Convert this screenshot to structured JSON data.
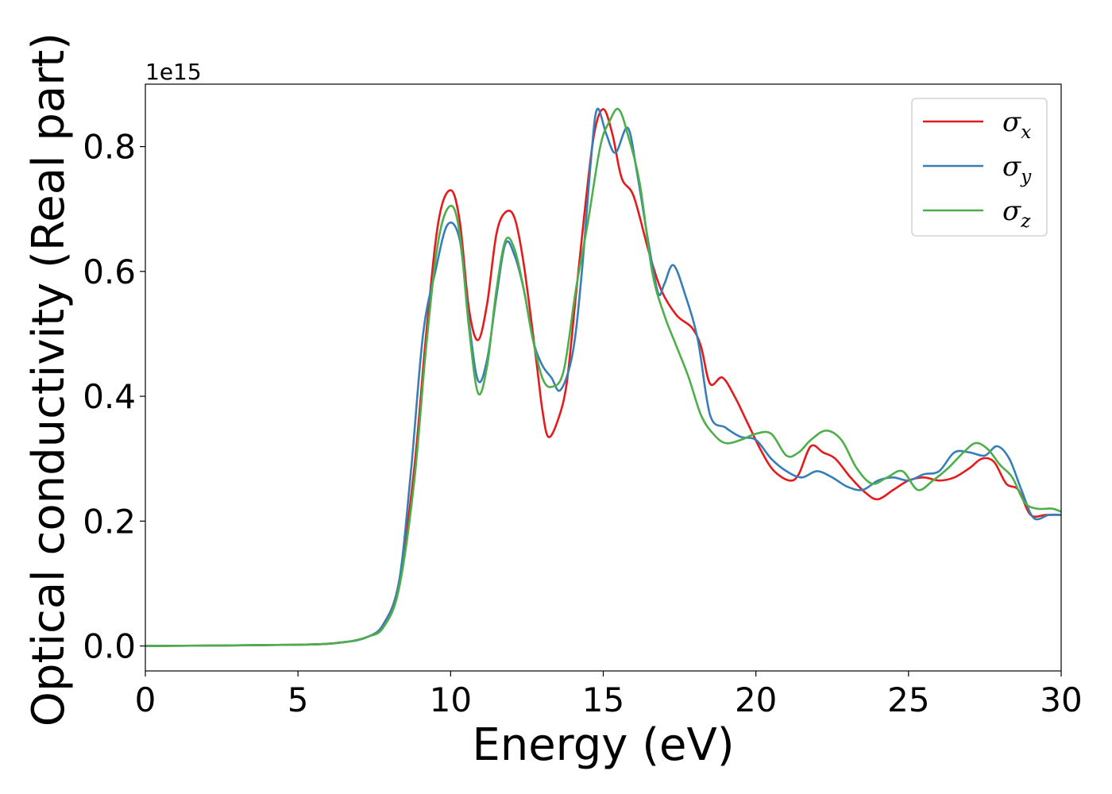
{
  "chart_data": {
    "type": "line",
    "xlabel": "Energy (eV)",
    "ylabel": "Optical conductivity (Real part)",
    "y_offset_label": "1e15",
    "xlim": [
      0,
      30
    ],
    "ylim": [
      -0.04,
      0.9
    ],
    "x_ticks": [
      0,
      5,
      10,
      15,
      20,
      25,
      30
    ],
    "x_tick_labels": [
      "0",
      "5",
      "10",
      "15",
      "20",
      "25",
      "30"
    ],
    "y_ticks": [
      0.0,
      0.2,
      0.4,
      0.6,
      0.8
    ],
    "y_tick_labels": [
      "0.0",
      "0.2",
      "0.4",
      "0.6",
      "0.8"
    ],
    "grid": false,
    "legend_position": "top-right",
    "series": [
      {
        "name": "σx",
        "symbol": "σ",
        "subscript": "x",
        "color": "#e41a1c",
        "points": [
          [
            0,
            0.0
          ],
          [
            5,
            0.002
          ],
          [
            6.5,
            0.006
          ],
          [
            7.3,
            0.015
          ],
          [
            7.8,
            0.035
          ],
          [
            8.3,
            0.1
          ],
          [
            8.8,
            0.28
          ],
          [
            9.2,
            0.5
          ],
          [
            9.6,
            0.68
          ],
          [
            10.0,
            0.73
          ],
          [
            10.3,
            0.68
          ],
          [
            10.6,
            0.54
          ],
          [
            10.9,
            0.49
          ],
          [
            11.2,
            0.55
          ],
          [
            11.5,
            0.66
          ],
          [
            11.8,
            0.695
          ],
          [
            12.1,
            0.685
          ],
          [
            12.4,
            0.61
          ],
          [
            12.8,
            0.46
          ],
          [
            13.0,
            0.38
          ],
          [
            13.2,
            0.335
          ],
          [
            13.5,
            0.36
          ],
          [
            13.8,
            0.42
          ],
          [
            14.1,
            0.56
          ],
          [
            14.4,
            0.7
          ],
          [
            14.7,
            0.82
          ],
          [
            15.0,
            0.86
          ],
          [
            15.3,
            0.82
          ],
          [
            15.6,
            0.75
          ],
          [
            16.0,
            0.72
          ],
          [
            16.5,
            0.63
          ],
          [
            16.9,
            0.57
          ],
          [
            17.4,
            0.53
          ],
          [
            17.9,
            0.51
          ],
          [
            18.2,
            0.48
          ],
          [
            18.5,
            0.42
          ],
          [
            18.9,
            0.43
          ],
          [
            19.3,
            0.4
          ],
          [
            19.7,
            0.36
          ],
          [
            20.2,
            0.31
          ],
          [
            20.6,
            0.28
          ],
          [
            21.1,
            0.265
          ],
          [
            21.4,
            0.275
          ],
          [
            21.8,
            0.32
          ],
          [
            22.2,
            0.31
          ],
          [
            22.6,
            0.3
          ],
          [
            23.1,
            0.27
          ],
          [
            23.6,
            0.245
          ],
          [
            24.0,
            0.235
          ],
          [
            24.5,
            0.25
          ],
          [
            25.0,
            0.265
          ],
          [
            25.5,
            0.27
          ],
          [
            26.0,
            0.265
          ],
          [
            26.5,
            0.27
          ],
          [
            27.0,
            0.285
          ],
          [
            27.4,
            0.3
          ],
          [
            27.8,
            0.295
          ],
          [
            28.2,
            0.26
          ],
          [
            28.6,
            0.25
          ],
          [
            29.0,
            0.21
          ],
          [
            29.5,
            0.21
          ],
          [
            30.0,
            0.21
          ]
        ]
      },
      {
        "name": "σy",
        "symbol": "σ",
        "subscript": "y",
        "color": "#377eb8",
        "points": [
          [
            0,
            0.0
          ],
          [
            5,
            0.002
          ],
          [
            6.5,
            0.006
          ],
          [
            7.3,
            0.015
          ],
          [
            7.8,
            0.035
          ],
          [
            8.3,
            0.1
          ],
          [
            8.7,
            0.28
          ],
          [
            9.1,
            0.5
          ],
          [
            9.5,
            0.6
          ],
          [
            9.9,
            0.675
          ],
          [
            10.3,
            0.65
          ],
          [
            10.6,
            0.52
          ],
          [
            10.9,
            0.425
          ],
          [
            11.2,
            0.46
          ],
          [
            11.5,
            0.56
          ],
          [
            11.8,
            0.645
          ],
          [
            12.1,
            0.625
          ],
          [
            12.4,
            0.57
          ],
          [
            12.7,
            0.49
          ],
          [
            13.0,
            0.45
          ],
          [
            13.3,
            0.43
          ],
          [
            13.6,
            0.41
          ],
          [
            14.0,
            0.47
          ],
          [
            14.3,
            0.6
          ],
          [
            14.6,
            0.78
          ],
          [
            14.8,
            0.86
          ],
          [
            15.1,
            0.82
          ],
          [
            15.4,
            0.79
          ],
          [
            15.8,
            0.83
          ],
          [
            16.1,
            0.76
          ],
          [
            16.5,
            0.64
          ],
          [
            16.8,
            0.565
          ],
          [
            17.0,
            0.58
          ],
          [
            17.3,
            0.61
          ],
          [
            17.7,
            0.56
          ],
          [
            18.1,
            0.49
          ],
          [
            18.5,
            0.37
          ],
          [
            19.0,
            0.35
          ],
          [
            19.5,
            0.335
          ],
          [
            20.0,
            0.33
          ],
          [
            20.5,
            0.3
          ],
          [
            21.0,
            0.28
          ],
          [
            21.5,
            0.27
          ],
          [
            22.0,
            0.28
          ],
          [
            22.5,
            0.27
          ],
          [
            23.0,
            0.255
          ],
          [
            23.5,
            0.25
          ],
          [
            24.0,
            0.265
          ],
          [
            24.5,
            0.27
          ],
          [
            25.0,
            0.265
          ],
          [
            25.5,
            0.275
          ],
          [
            26.0,
            0.28
          ],
          [
            26.5,
            0.31
          ],
          [
            27.0,
            0.31
          ],
          [
            27.5,
            0.305
          ],
          [
            27.9,
            0.32
          ],
          [
            28.3,
            0.3
          ],
          [
            28.7,
            0.25
          ],
          [
            29.1,
            0.205
          ],
          [
            29.6,
            0.21
          ],
          [
            30.0,
            0.21
          ]
        ]
      },
      {
        "name": "σz",
        "symbol": "σ",
        "subscript": "z",
        "color": "#4daf4a",
        "points": [
          [
            0,
            0.0
          ],
          [
            5,
            0.002
          ],
          [
            6.5,
            0.006
          ],
          [
            7.3,
            0.015
          ],
          [
            7.8,
            0.03
          ],
          [
            8.3,
            0.09
          ],
          [
            8.8,
            0.26
          ],
          [
            9.2,
            0.48
          ],
          [
            9.6,
            0.65
          ],
          [
            10.0,
            0.705
          ],
          [
            10.3,
            0.66
          ],
          [
            10.6,
            0.51
          ],
          [
            10.9,
            0.405
          ],
          [
            11.2,
            0.45
          ],
          [
            11.5,
            0.57
          ],
          [
            11.8,
            0.65
          ],
          [
            12.1,
            0.635
          ],
          [
            12.4,
            0.57
          ],
          [
            12.7,
            0.49
          ],
          [
            13.0,
            0.43
          ],
          [
            13.3,
            0.415
          ],
          [
            13.7,
            0.44
          ],
          [
            14.1,
            0.57
          ],
          [
            14.5,
            0.68
          ],
          [
            14.9,
            0.8
          ],
          [
            15.2,
            0.84
          ],
          [
            15.5,
            0.86
          ],
          [
            15.8,
            0.82
          ],
          [
            16.2,
            0.74
          ],
          [
            16.6,
            0.6
          ],
          [
            17.0,
            0.53
          ],
          [
            17.4,
            0.48
          ],
          [
            17.8,
            0.43
          ],
          [
            18.2,
            0.37
          ],
          [
            18.6,
            0.34
          ],
          [
            19.0,
            0.325
          ],
          [
            19.5,
            0.33
          ],
          [
            20.0,
            0.34
          ],
          [
            20.5,
            0.34
          ],
          [
            21.0,
            0.305
          ],
          [
            21.4,
            0.31
          ],
          [
            21.8,
            0.33
          ],
          [
            22.3,
            0.345
          ],
          [
            22.8,
            0.33
          ],
          [
            23.3,
            0.285
          ],
          [
            23.8,
            0.26
          ],
          [
            24.3,
            0.27
          ],
          [
            24.8,
            0.28
          ],
          [
            25.3,
            0.25
          ],
          [
            25.8,
            0.265
          ],
          [
            26.3,
            0.285
          ],
          [
            26.8,
            0.31
          ],
          [
            27.2,
            0.325
          ],
          [
            27.6,
            0.315
          ],
          [
            28.0,
            0.29
          ],
          [
            28.4,
            0.27
          ],
          [
            28.8,
            0.23
          ],
          [
            29.2,
            0.22
          ],
          [
            29.7,
            0.22
          ],
          [
            30.0,
            0.215
          ]
        ]
      }
    ]
  }
}
